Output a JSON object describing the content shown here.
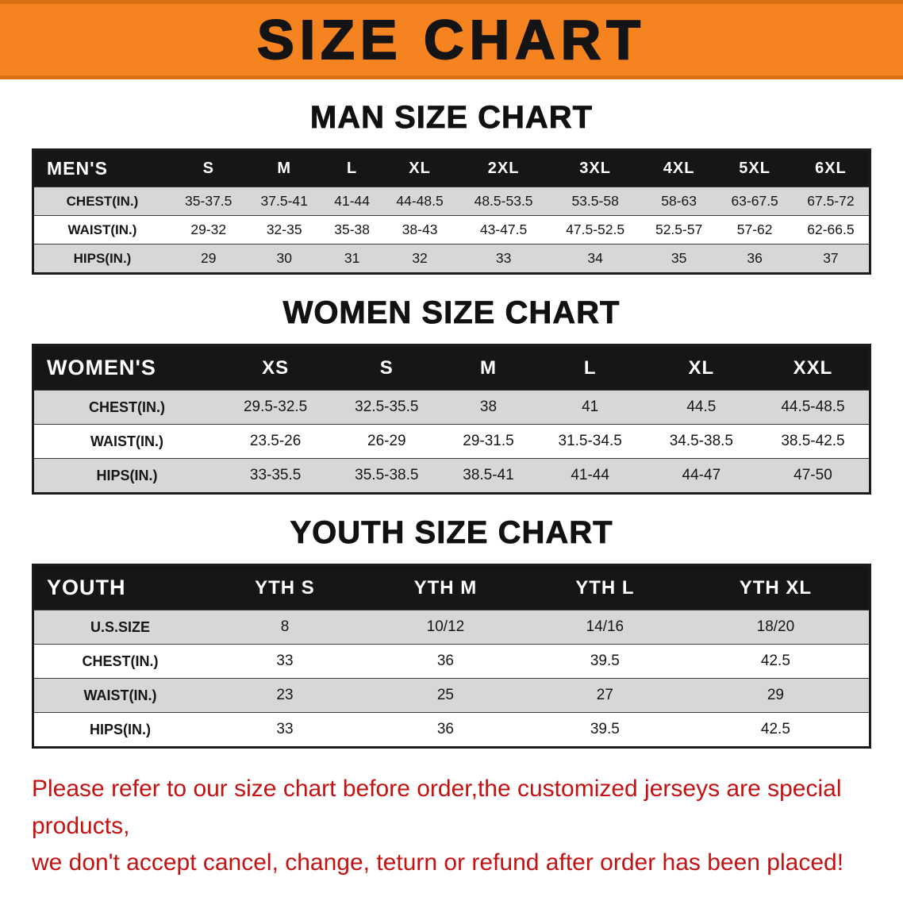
{
  "banner": {
    "title": "SIZE CHART"
  },
  "colors": {
    "banner_bg": "#f5831f",
    "banner_text": "#141414",
    "header_bg": "#161616",
    "header_text": "#ffffff",
    "row_alt_bg": "#d7d7d7",
    "footer_text": "#c41212"
  },
  "sections": [
    {
      "heading": "MAN SIZE CHART",
      "table": {
        "label": "MEN'S",
        "columns": [
          "S",
          "M",
          "L",
          "XL",
          "2XL",
          "3XL",
          "4XL",
          "5XL",
          "6XL"
        ],
        "rows": [
          {
            "label": "CHEST(IN.)",
            "values": [
              "35-37.5",
              "37.5-41",
              "41-44",
              "44-48.5",
              "48.5-53.5",
              "53.5-58",
              "58-63",
              "63-67.5",
              "67.5-72"
            ]
          },
          {
            "label": "WAIST(IN.)",
            "values": [
              "29-32",
              "32-35",
              "35-38",
              "38-43",
              "43-47.5",
              "47.5-52.5",
              "52.5-57",
              "57-62",
              "62-66.5"
            ]
          },
          {
            "label": "HIPS(IN.)",
            "values": [
              "29",
              "30",
              "31",
              "32",
              "33",
              "34",
              "35",
              "36",
              "37"
            ]
          }
        ]
      }
    },
    {
      "heading": "WOMEN SIZE CHART",
      "table": {
        "label": "WOMEN'S",
        "columns": [
          "XS",
          "S",
          "M",
          "L",
          "XL",
          "XXL"
        ],
        "rows": [
          {
            "label": "CHEST(IN.)",
            "values": [
              "29.5-32.5",
              "32.5-35.5",
              "38",
              "41",
              "44.5",
              "44.5-48.5"
            ]
          },
          {
            "label": "WAIST(IN.)",
            "values": [
              "23.5-26",
              "26-29",
              "29-31.5",
              "31.5-34.5",
              "34.5-38.5",
              "38.5-42.5"
            ]
          },
          {
            "label": "HIPS(IN.)",
            "values": [
              "33-35.5",
              "35.5-38.5",
              "38.5-41",
              "41-44",
              "44-47",
              "47-50"
            ]
          }
        ]
      }
    },
    {
      "heading": "YOUTH SIZE CHART",
      "table": {
        "label": "YOUTH",
        "columns": [
          "YTH S",
          "YTH M",
          "YTH L",
          "YTH XL"
        ],
        "rows": [
          {
            "label": "U.S.SIZE",
            "values": [
              "8",
              "10/12",
              "14/16",
              "18/20"
            ]
          },
          {
            "label": "CHEST(IN.)",
            "values": [
              "33",
              "36",
              "39.5",
              "42.5"
            ]
          },
          {
            "label": "WAIST(IN.)",
            "values": [
              "23",
              "25",
              "27",
              "29"
            ]
          },
          {
            "label": "HIPS(IN.)",
            "values": [
              "33",
              "36",
              "39.5",
              "42.5"
            ]
          }
        ]
      }
    }
  ],
  "footer": {
    "lines": [
      "Please refer to our size chart before order,the customized jerseys are special products,",
      "we don't accept cancel, change, teturn or refund after order has been placed!"
    ]
  }
}
